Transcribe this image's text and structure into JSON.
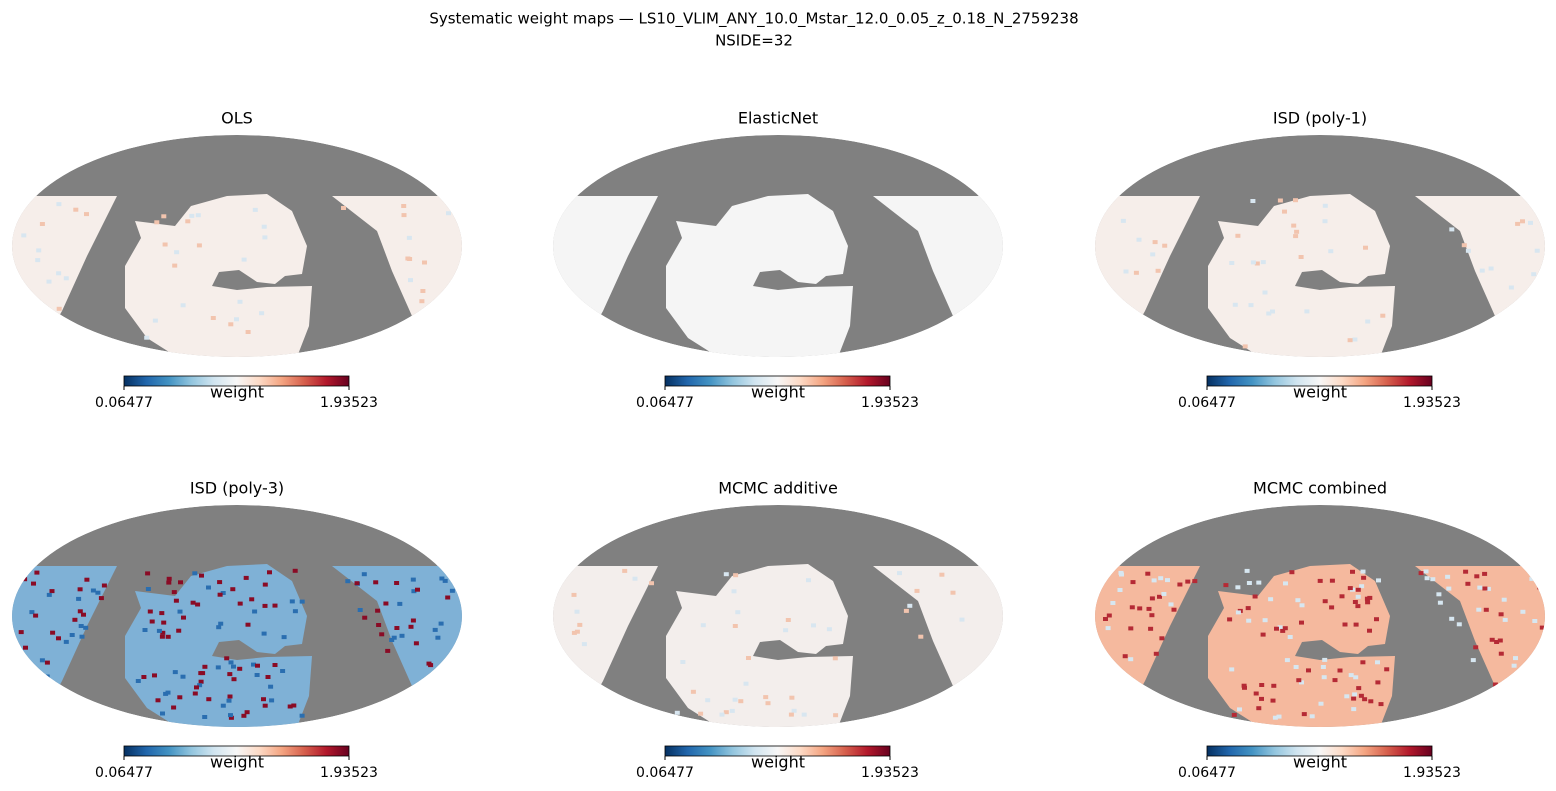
{
  "title": "Systematic weight maps — LS10_VLIM_ANY_10.0_Mstar_12.0_0.05_z_0.18_N_2759238",
  "subtitle": "NSIDE=32",
  "panels": [
    {
      "title": "OLS",
      "colorbar": {
        "label": "weight",
        "min": 0.06477,
        "max": 1.93523
      }
    },
    {
      "title": "ElasticNet",
      "colorbar": {
        "label": "weight",
        "min": 0.06477,
        "max": 1.93523
      }
    },
    {
      "title": "ISD (poly-1)",
      "colorbar": {
        "label": "weight",
        "min": 0.06477,
        "max": 1.93523
      }
    },
    {
      "title": "ISD (poly-3)",
      "colorbar": {
        "label": "weight",
        "min": 0.06477,
        "max": 1.93523
      }
    },
    {
      "title": "MCMC additive",
      "colorbar": {
        "label": "weight",
        "min": 0.06477,
        "max": 1.93523
      }
    },
    {
      "title": "MCMC combined",
      "colorbar": {
        "label": "weight",
        "min": 0.06477,
        "max": 1.93523
      }
    }
  ]
}
